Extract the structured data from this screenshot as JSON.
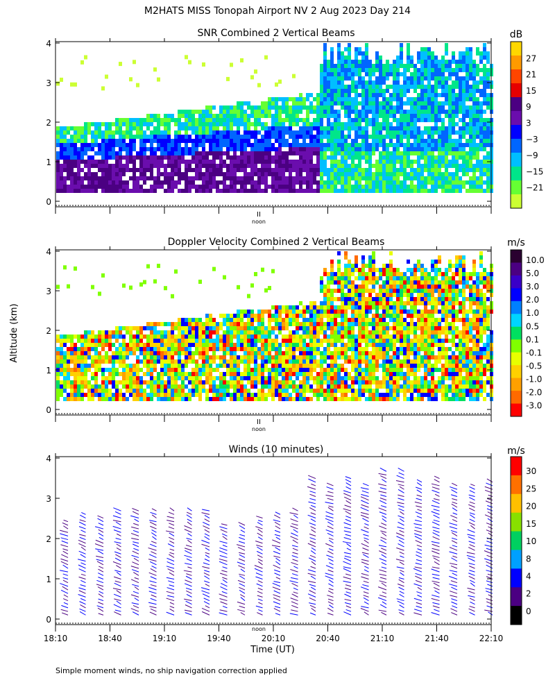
{
  "header": {
    "title": "M2HATS MISS Tonopah Airport NV   2 Aug 2023 Day 214"
  },
  "footer": {
    "note": "Simple moment winds, no ship navigation correction applied"
  },
  "axes": {
    "ylabel": "Altitude (km)",
    "xlabel": "Time (UT)",
    "noon_label": "noon",
    "noon_mark": "II",
    "yticks": [
      "0",
      "1",
      "2",
      "3",
      "4"
    ],
    "xticks": [
      "18:10",
      "18:40",
      "19:10",
      "19:40",
      "20:10",
      "20:40",
      "21:10",
      "21:40",
      "22:10"
    ]
  },
  "chart_data": [
    {
      "type": "heatmap",
      "title": "SNR Combined 2 Vertical Beams",
      "unit": "dB",
      "x_range": [
        "18:10",
        "22:10"
      ],
      "ylim": [
        0,
        4
      ],
      "colorbar": {
        "labels": [
          "27",
          "21",
          "15",
          "9",
          "3",
          "−3",
          "−9",
          "−15",
          "−21"
        ],
        "colors": [
          "#ffd700",
          "#ff9a00",
          "#ff4500",
          "#e60000",
          "#4b0082",
          "#6a0dad",
          "#0000ff",
          "#0066ff",
          "#00bfff",
          "#00e68a",
          "#66ff33",
          "#ccff33"
        ]
      }
    },
    {
      "type": "heatmap",
      "title": "Doppler Velocity Combined 2 Vertical Beams",
      "unit": "m/s",
      "x_range": [
        "18:10",
        "22:10"
      ],
      "ylim": [
        0,
        4
      ],
      "colorbar": {
        "labels": [
          "10.0",
          "5.0",
          "3.0",
          "2.0",
          "1.0",
          "0.5",
          "0.1",
          "-0.1",
          "-0.5",
          "-1.0",
          "-2.0",
          "-3.0"
        ],
        "colors": [
          "#2a0030",
          "#4b0082",
          "#3a00c8",
          "#0000ff",
          "#0080ff",
          "#00d5ff",
          "#00e060",
          "#80ff00",
          "#e8ff00",
          "#ffd000",
          "#ffa000",
          "#ff6a00",
          "#ff0000"
        ]
      }
    },
    {
      "type": "scatter",
      "title": "Winds (10 minutes)",
      "unit": "m/s",
      "x_range": [
        "18:10",
        "22:10"
      ],
      "ylim": [
        0,
        4
      ],
      "colorbar": {
        "labels": [
          "30",
          "25",
          "20",
          "15",
          "10",
          "8",
          "4",
          "2",
          "0"
        ],
        "colors": [
          "#ff0000",
          "#ff7000",
          "#ffc000",
          "#88e000",
          "#00d060",
          "#00a0ff",
          "#0000ff",
          "#4b0082",
          "#000000"
        ]
      }
    }
  ]
}
